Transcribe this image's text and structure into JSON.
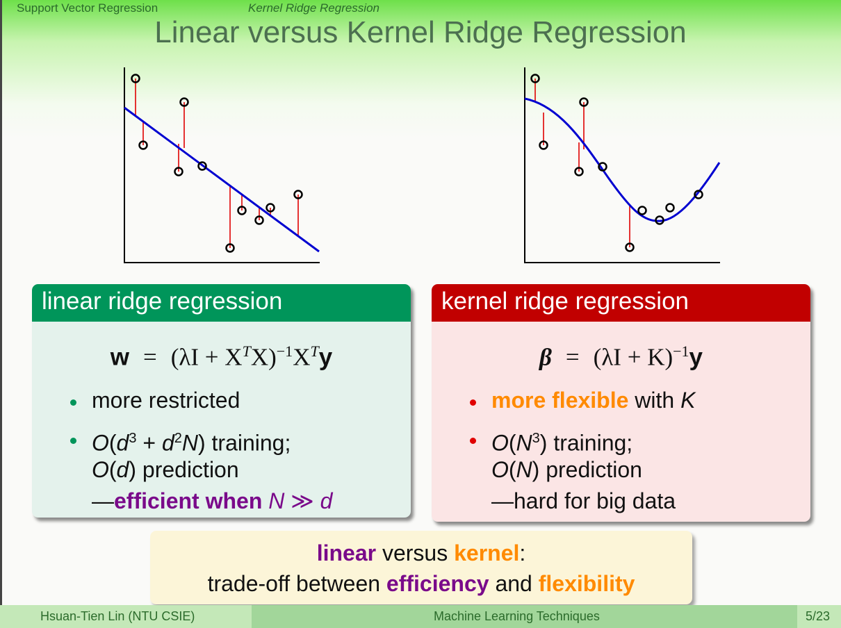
{
  "nav": {
    "section": "Support Vector Regression",
    "subsection": "Kernel Ridge Regression"
  },
  "title": "Linear versus Kernel Ridge Regression",
  "colors": {
    "linear_header": "#00955a",
    "kernel_header": "#c10000",
    "fit_line": "#0000d0",
    "residual": "#e00000",
    "purple": "#7a0a8a",
    "orange": "#ff8a00"
  },
  "linear": {
    "header": "linear ridge regression",
    "formula": {
      "lhs": "w",
      "eq": "=",
      "rhs_open": "(λI + X",
      "t1": "T",
      "rhs_mid": "X)",
      "inv": "−1",
      "rhs_x": "X",
      "t2": "T",
      "rhs_y": "y"
    },
    "bullet1": "more restricted",
    "bullet2": {
      "o1": "O",
      "p1": "(",
      "d1": "d",
      "e1": "3",
      "plus": " + ",
      "d2": "d",
      "e2": "2",
      "n": "N",
      "p2": ")",
      "rest": " training;"
    },
    "line2": {
      "o": "O",
      "p1": "(",
      "d": "d",
      "p2": ")",
      "rest": " prediction"
    },
    "line3": {
      "dash": "—",
      "bold": "efficient when ",
      "n": "N",
      "gg": " ≫ ",
      "d": "d"
    }
  },
  "kernel": {
    "header": "kernel ridge regression",
    "formula": {
      "lhs": "β",
      "eq": "=",
      "rhs_open": "(λI + K)",
      "inv": "−1",
      "rhs_y": "y"
    },
    "bullet1": {
      "bold": "more flexible",
      "rest": " with ",
      "k": "K"
    },
    "bullet2": {
      "o": "O",
      "p1": "(",
      "n": "N",
      "e": "3",
      "p2": ")",
      "rest": " training;"
    },
    "line2": {
      "o": "O",
      "p1": "(",
      "n": "N",
      "p2": ")",
      "rest": " prediction"
    },
    "line3": "—hard for big data"
  },
  "summary": {
    "l1": {
      "linear": "linear",
      "versus": " versus ",
      "kernel": "kernel",
      "colon": ":"
    },
    "l2": {
      "pre": "trade-off between ",
      "efficiency": "efficiency",
      "and": " and ",
      "flexibility": "flexibility"
    }
  },
  "footer": {
    "author": "Hsuan-Tien Lin  (NTU CSIE)",
    "course": "Machine Learning Techniques",
    "page": "5/23"
  }
}
